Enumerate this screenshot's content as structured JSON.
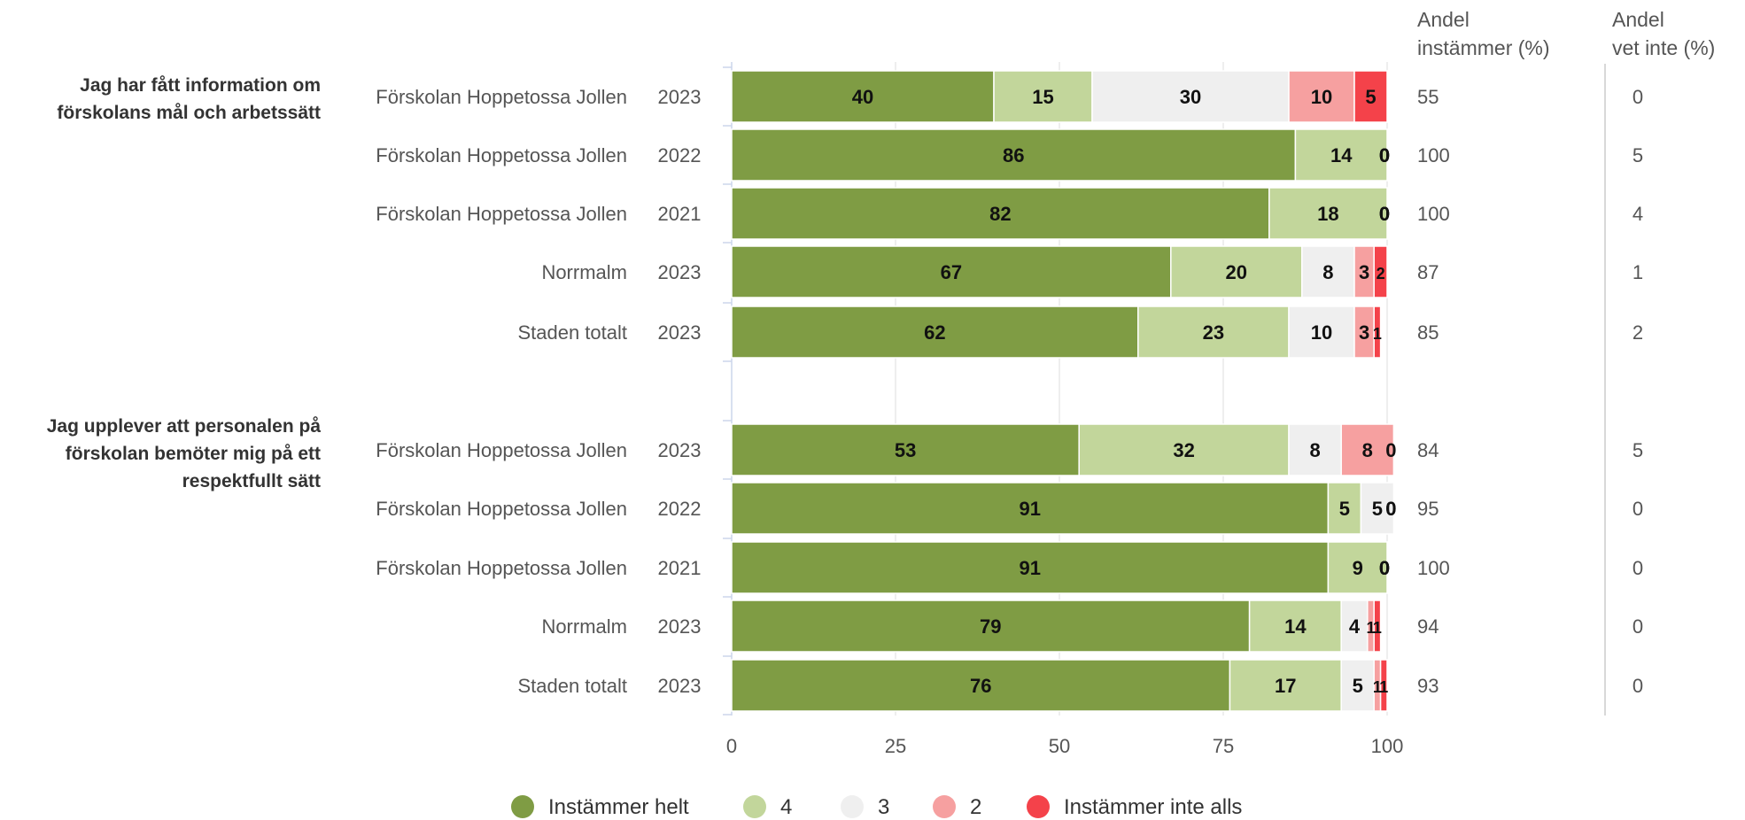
{
  "colors": {
    "Instämmer helt": "#7f9c44",
    "4": "#c2d69b",
    "3": "#efefef",
    "2": "#f6a0a0",
    "Instämmer inte alls": "#f4424a",
    "gridline": "#dddddd",
    "axis_text": "#555555",
    "label_text": "#333333"
  },
  "columns": {
    "andel_instammer": "Andel instämmer (%)",
    "andel_vet_inte": "Andel vet inte (%)"
  },
  "chart_data": {
    "type": "bar",
    "orientation": "horizontal",
    "stacked": true,
    "xlim": [
      0,
      100
    ],
    "xticks": [
      0,
      25,
      50,
      75,
      100
    ],
    "grid": true,
    "legend_position": "bottom",
    "series_names": [
      "Instämmer helt",
      "4",
      "3",
      "2",
      "Instämmer inte alls"
    ],
    "groups": [
      {
        "question": "Jag har fått information om förskolans mål och arbetssätt",
        "rows": [
          {
            "unit": "Förskolan Hoppetossa Jollen",
            "year": "2023",
            "values": [
              40,
              15,
              30,
              10,
              5
            ],
            "andel_instammer": 55,
            "andel_vet_inte": 0
          },
          {
            "unit": "Förskolan Hoppetossa Jollen",
            "year": "2022",
            "values": [
              86,
              14,
              0,
              0,
              0
            ],
            "andel_instammer": 100,
            "andel_vet_inte": 5
          },
          {
            "unit": "Förskolan Hoppetossa Jollen",
            "year": "2021",
            "values": [
              82,
              18,
              0,
              0,
              0
            ],
            "andel_instammer": 100,
            "andel_vet_inte": 4
          },
          {
            "unit": "Norrmalm",
            "year": "2023",
            "values": [
              67,
              20,
              8,
              3,
              2
            ],
            "andel_instammer": 87,
            "andel_vet_inte": 1
          },
          {
            "unit": "Staden totalt",
            "year": "2023",
            "values": [
              62,
              23,
              10,
              3,
              1
            ],
            "andel_instammer": 85,
            "andel_vet_inte": 2
          }
        ]
      },
      {
        "question": "Jag upplever att personalen på förskolan bemöter mig på ett respektfullt sätt",
        "rows": [
          {
            "unit": "Förskolan Hoppetossa Jollen",
            "year": "2023",
            "values": [
              53,
              32,
              8,
              8,
              0
            ],
            "andel_instammer": 84,
            "andel_vet_inte": 5
          },
          {
            "unit": "Förskolan Hoppetossa Jollen",
            "year": "2022",
            "values": [
              91,
              5,
              5,
              0,
              0
            ],
            "andel_instammer": 95,
            "andel_vet_inte": 0
          },
          {
            "unit": "Förskolan Hoppetossa Jollen",
            "year": "2021",
            "values": [
              91,
              9,
              0,
              0,
              0
            ],
            "andel_instammer": 100,
            "andel_vet_inte": 0
          },
          {
            "unit": "Norrmalm",
            "year": "2023",
            "values": [
              79,
              14,
              4,
              1,
              1
            ],
            "andel_instammer": 94,
            "andel_vet_inte": 0
          },
          {
            "unit": "Staden totalt",
            "year": "2023",
            "values": [
              76,
              17,
              5,
              1,
              1
            ],
            "andel_instammer": 93,
            "andel_vet_inte": 0
          }
        ]
      }
    ]
  }
}
